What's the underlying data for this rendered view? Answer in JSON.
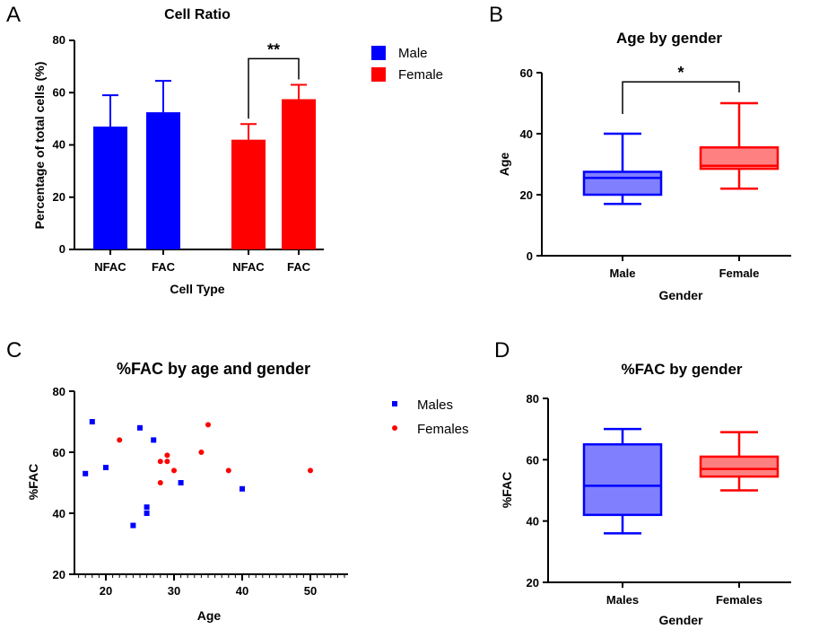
{
  "colors": {
    "male": "#0000FF",
    "female": "#FF0000",
    "male_fill": "#8080FF",
    "female_fill": "#FF8080"
  },
  "chart_data": [
    {
      "panel": "A",
      "type": "bar",
      "title": "Cell Ratio",
      "xlabel": "Cell Type",
      "ylabel": "Percentage of total cells (%)",
      "ylim": [
        0,
        80
      ],
      "yticks": [
        0,
        20,
        40,
        60,
        80
      ],
      "categories": [
        "NFAC",
        "FAC",
        "NFAC",
        "FAC"
      ],
      "groups": [
        "Male",
        "Male",
        "Female",
        "Female"
      ],
      "values": [
        47,
        52.5,
        42,
        57.5
      ],
      "errors": [
        12,
        12,
        6,
        5.5
      ],
      "legend": [
        "Male",
        "Female"
      ],
      "significance": {
        "label": "**",
        "between": [
          2,
          3
        ],
        "y": 73
      }
    },
    {
      "panel": "B",
      "type": "box",
      "title": "Age by gender",
      "xlabel": "Gender",
      "ylabel": "Age",
      "ylim": [
        0,
        60
      ],
      "yticks": [
        0,
        20,
        40,
        60
      ],
      "categories": [
        "Male",
        "Female"
      ],
      "boxes": [
        {
          "min": 17,
          "q1": 20,
          "median": 25.5,
          "q3": 27.5,
          "max": 40
        },
        {
          "min": 22,
          "q1": 28.5,
          "median": 29.5,
          "q3": 35.5,
          "max": 50
        }
      ],
      "significance": {
        "label": "*",
        "y": 57
      }
    },
    {
      "panel": "C",
      "type": "scatter",
      "title": "%FAC by age and gender",
      "xlabel": "Age",
      "ylabel": "%FAC",
      "xlim": [
        15,
        55
      ],
      "ylim": [
        20,
        80
      ],
      "xticks": [
        20,
        30,
        40,
        50
      ],
      "yticks": [
        20,
        40,
        60,
        80
      ],
      "series": [
        {
          "name": "Males",
          "x": [
            17,
            18,
            20,
            24,
            25,
            26,
            26,
            27,
            31,
            40
          ],
          "y": [
            53,
            70,
            55,
            36,
            68,
            40,
            42,
            64,
            50,
            48
          ]
        },
        {
          "name": "Females",
          "x": [
            22,
            28,
            28,
            29,
            29,
            30,
            34,
            35,
            38,
            50
          ],
          "y": [
            64,
            57,
            50,
            57,
            59,
            54,
            60,
            69,
            54,
            54
          ]
        }
      ]
    },
    {
      "panel": "D",
      "type": "box",
      "title": "%FAC by gender",
      "xlabel": "Gender",
      "ylabel": "%FAC",
      "ylim": [
        20,
        80
      ],
      "yticks": [
        20,
        40,
        60,
        80
      ],
      "categories": [
        "Males",
        "Females"
      ],
      "boxes": [
        {
          "min": 36,
          "q1": 42,
          "median": 51.5,
          "q3": 65,
          "max": 70
        },
        {
          "min": 50,
          "q1": 54.5,
          "median": 57,
          "q3": 61,
          "max": 69
        }
      ]
    }
  ]
}
